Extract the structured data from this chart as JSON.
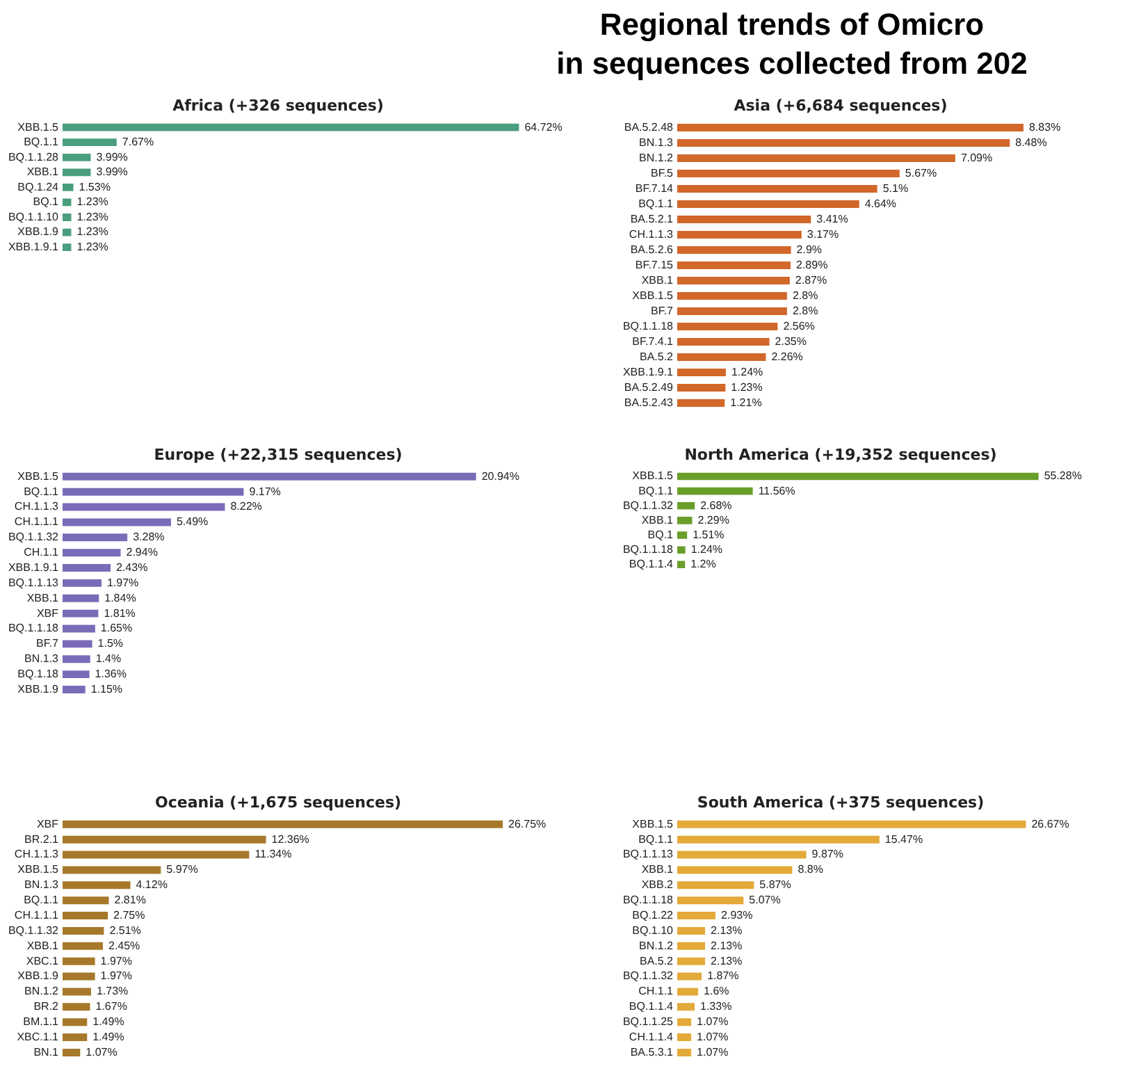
{
  "chart_data": [
    {
      "type": "other",
      "title": "Regional trends of Omicro",
      "subtitle": "in sequences collected from 202"
    },
    {
      "type": "bar",
      "orientation": "horizontal",
      "title": "Africa (+326 sequences)",
      "color": "#4a9e7e",
      "tick_labels": "y",
      "categories": [
        "XBB.1.5",
        "BQ.1.1",
        "BQ.1.1.28",
        "XBB.1",
        "BQ.1.24",
        "BQ.1",
        "BQ.1.1.10",
        "XBB.1.9",
        "XBB.1.9.1"
      ],
      "values": [
        64.72,
        7.67,
        3.99,
        3.99,
        1.53,
        1.23,
        1.23,
        1.23,
        1.23
      ],
      "value_labels": [
        "64.72%",
        "7.67%",
        "3.99%",
        "3.99%",
        "1.53%",
        "1.23%",
        "1.23%",
        "1.23%",
        "1.23%"
      ]
    },
    {
      "type": "bar",
      "orientation": "horizontal",
      "title": "Asia (+6,684 sequences)",
      "color": "#d2672a",
      "tick_labels": "y",
      "categories": [
        "BA.5.2.48",
        "BN.1.3",
        "BN.1.2",
        "BF.5",
        "BF.7.14",
        "BQ.1.1",
        "BA.5.2.1",
        "CH.1.1.3",
        "BA.5.2.6",
        "BF.7.15",
        "XBB.1",
        "XBB.1.5",
        "BF.7",
        "BQ.1.1.18",
        "BF.7.4.1",
        "BA.5.2",
        "XBB.1.9.1",
        "BA.5.2.49",
        "BA.5.2.43"
      ],
      "values": [
        8.83,
        8.48,
        7.09,
        5.67,
        5.1,
        4.64,
        3.41,
        3.17,
        2.9,
        2.89,
        2.87,
        2.8,
        2.8,
        2.56,
        2.35,
        2.26,
        1.24,
        1.23,
        1.21
      ],
      "value_labels": [
        "8.83%",
        "8.48%",
        "7.09%",
        "5.67%",
        "5.1%",
        "4.64%",
        "3.41%",
        "3.17%",
        "2.9%",
        "2.89%",
        "2.87%",
        "2.8%",
        "2.8%",
        "2.56%",
        "2.35%",
        "2.26%",
        "1.24%",
        "1.23%",
        "1.21%"
      ]
    },
    {
      "type": "bar",
      "orientation": "horizontal",
      "title": "Europe (+22,315 sequences)",
      "color": "#7a6bb8",
      "tick_labels": "y",
      "categories": [
        "XBB.1.5",
        "BQ.1.1",
        "CH.1.1.3",
        "CH.1.1.1",
        "BQ.1.1.32",
        "CH.1.1",
        "XBB.1.9.1",
        "BQ.1.1.13",
        "XBB.1",
        "XBF",
        "BQ.1.1.18",
        "BF.7",
        "BN.1.3",
        "BQ.1.18",
        "XBB.1.9"
      ],
      "values": [
        20.94,
        9.17,
        8.22,
        5.49,
        3.28,
        2.94,
        2.43,
        1.97,
        1.84,
        1.81,
        1.65,
        1.5,
        1.4,
        1.36,
        1.15
      ],
      "value_labels": [
        "20.94%",
        "9.17%",
        "8.22%",
        "5.49%",
        "3.28%",
        "2.94%",
        "2.43%",
        "1.97%",
        "1.84%",
        "1.81%",
        "1.65%",
        "1.5%",
        "1.4%",
        "1.36%",
        "1.15%"
      ]
    },
    {
      "type": "bar",
      "orientation": "horizontal",
      "title": "North America (+19,352 sequences)",
      "color": "#6a9e2a",
      "tick_labels": "y",
      "categories": [
        "XBB.1.5",
        "BQ.1.1",
        "BQ.1.1.32",
        "XBB.1",
        "BQ.1",
        "BQ.1.1.18",
        "BQ.1.1.4"
      ],
      "values": [
        55.28,
        11.56,
        2.68,
        2.29,
        1.51,
        1.24,
        1.2
      ],
      "value_labels": [
        "55.28%",
        "11.56%",
        "2.68%",
        "2.29%",
        "1.51%",
        "1.24%",
        "1.2%"
      ]
    },
    {
      "type": "bar",
      "orientation": "horizontal",
      "title": "Oceania (+1,675 sequences)",
      "color": "#a6792a",
      "tick_labels": "y",
      "categories": [
        "XBF",
        "BR.2.1",
        "CH.1.1.3",
        "XBB.1.5",
        "BN.1.3",
        "BQ.1.1",
        "CH.1.1.1",
        "BQ.1.1.32",
        "XBB.1",
        "XBC.1",
        "XBB.1.9",
        "BN.1.2",
        "BR.2",
        "BM.1.1",
        "XBC.1.1",
        "BN.1"
      ],
      "values": [
        26.75,
        12.36,
        11.34,
        5.97,
        4.12,
        2.81,
        2.75,
        2.51,
        2.45,
        1.97,
        1.97,
        1.73,
        1.67,
        1.49,
        1.49,
        1.07
      ],
      "value_labels": [
        "26.75%",
        "12.36%",
        "11.34%",
        "5.97%",
        "4.12%",
        "2.81%",
        "2.75%",
        "2.51%",
        "2.45%",
        "1.97%",
        "1.97%",
        "1.73%",
        "1.67%",
        "1.49%",
        "1.49%",
        "1.07%"
      ]
    },
    {
      "type": "bar",
      "orientation": "horizontal",
      "title": "South America (+375 sequences)",
      "color": "#e3aa3a",
      "tick_labels": "y",
      "categories": [
        "XBB.1.5",
        "BQ.1.1",
        "BQ.1.1.13",
        "XBB.1",
        "XBB.2",
        "BQ.1.1.18",
        "BQ.1.22",
        "BQ.1.10",
        "BN.1.2",
        "BA.5.2",
        "BQ.1.1.32",
        "CH.1.1",
        "BQ.1.1.4",
        "BQ.1.1.25",
        "CH.1.1.4",
        "BA.5.3.1"
      ],
      "values": [
        26.67,
        15.47,
        9.87,
        8.8,
        5.87,
        5.07,
        2.93,
        2.13,
        2.13,
        2.13,
        1.87,
        1.6,
        1.33,
        1.07,
        1.07,
        1.07
      ],
      "value_labels": [
        "26.67%",
        "15.47%",
        "9.87%",
        "8.8%",
        "5.87%",
        "5.07%",
        "2.93%",
        "2.13%",
        "2.13%",
        "2.13%",
        "1.87%",
        "1.6%",
        "1.33%",
        "1.07%",
        "1.07%",
        "1.07%"
      ]
    }
  ]
}
